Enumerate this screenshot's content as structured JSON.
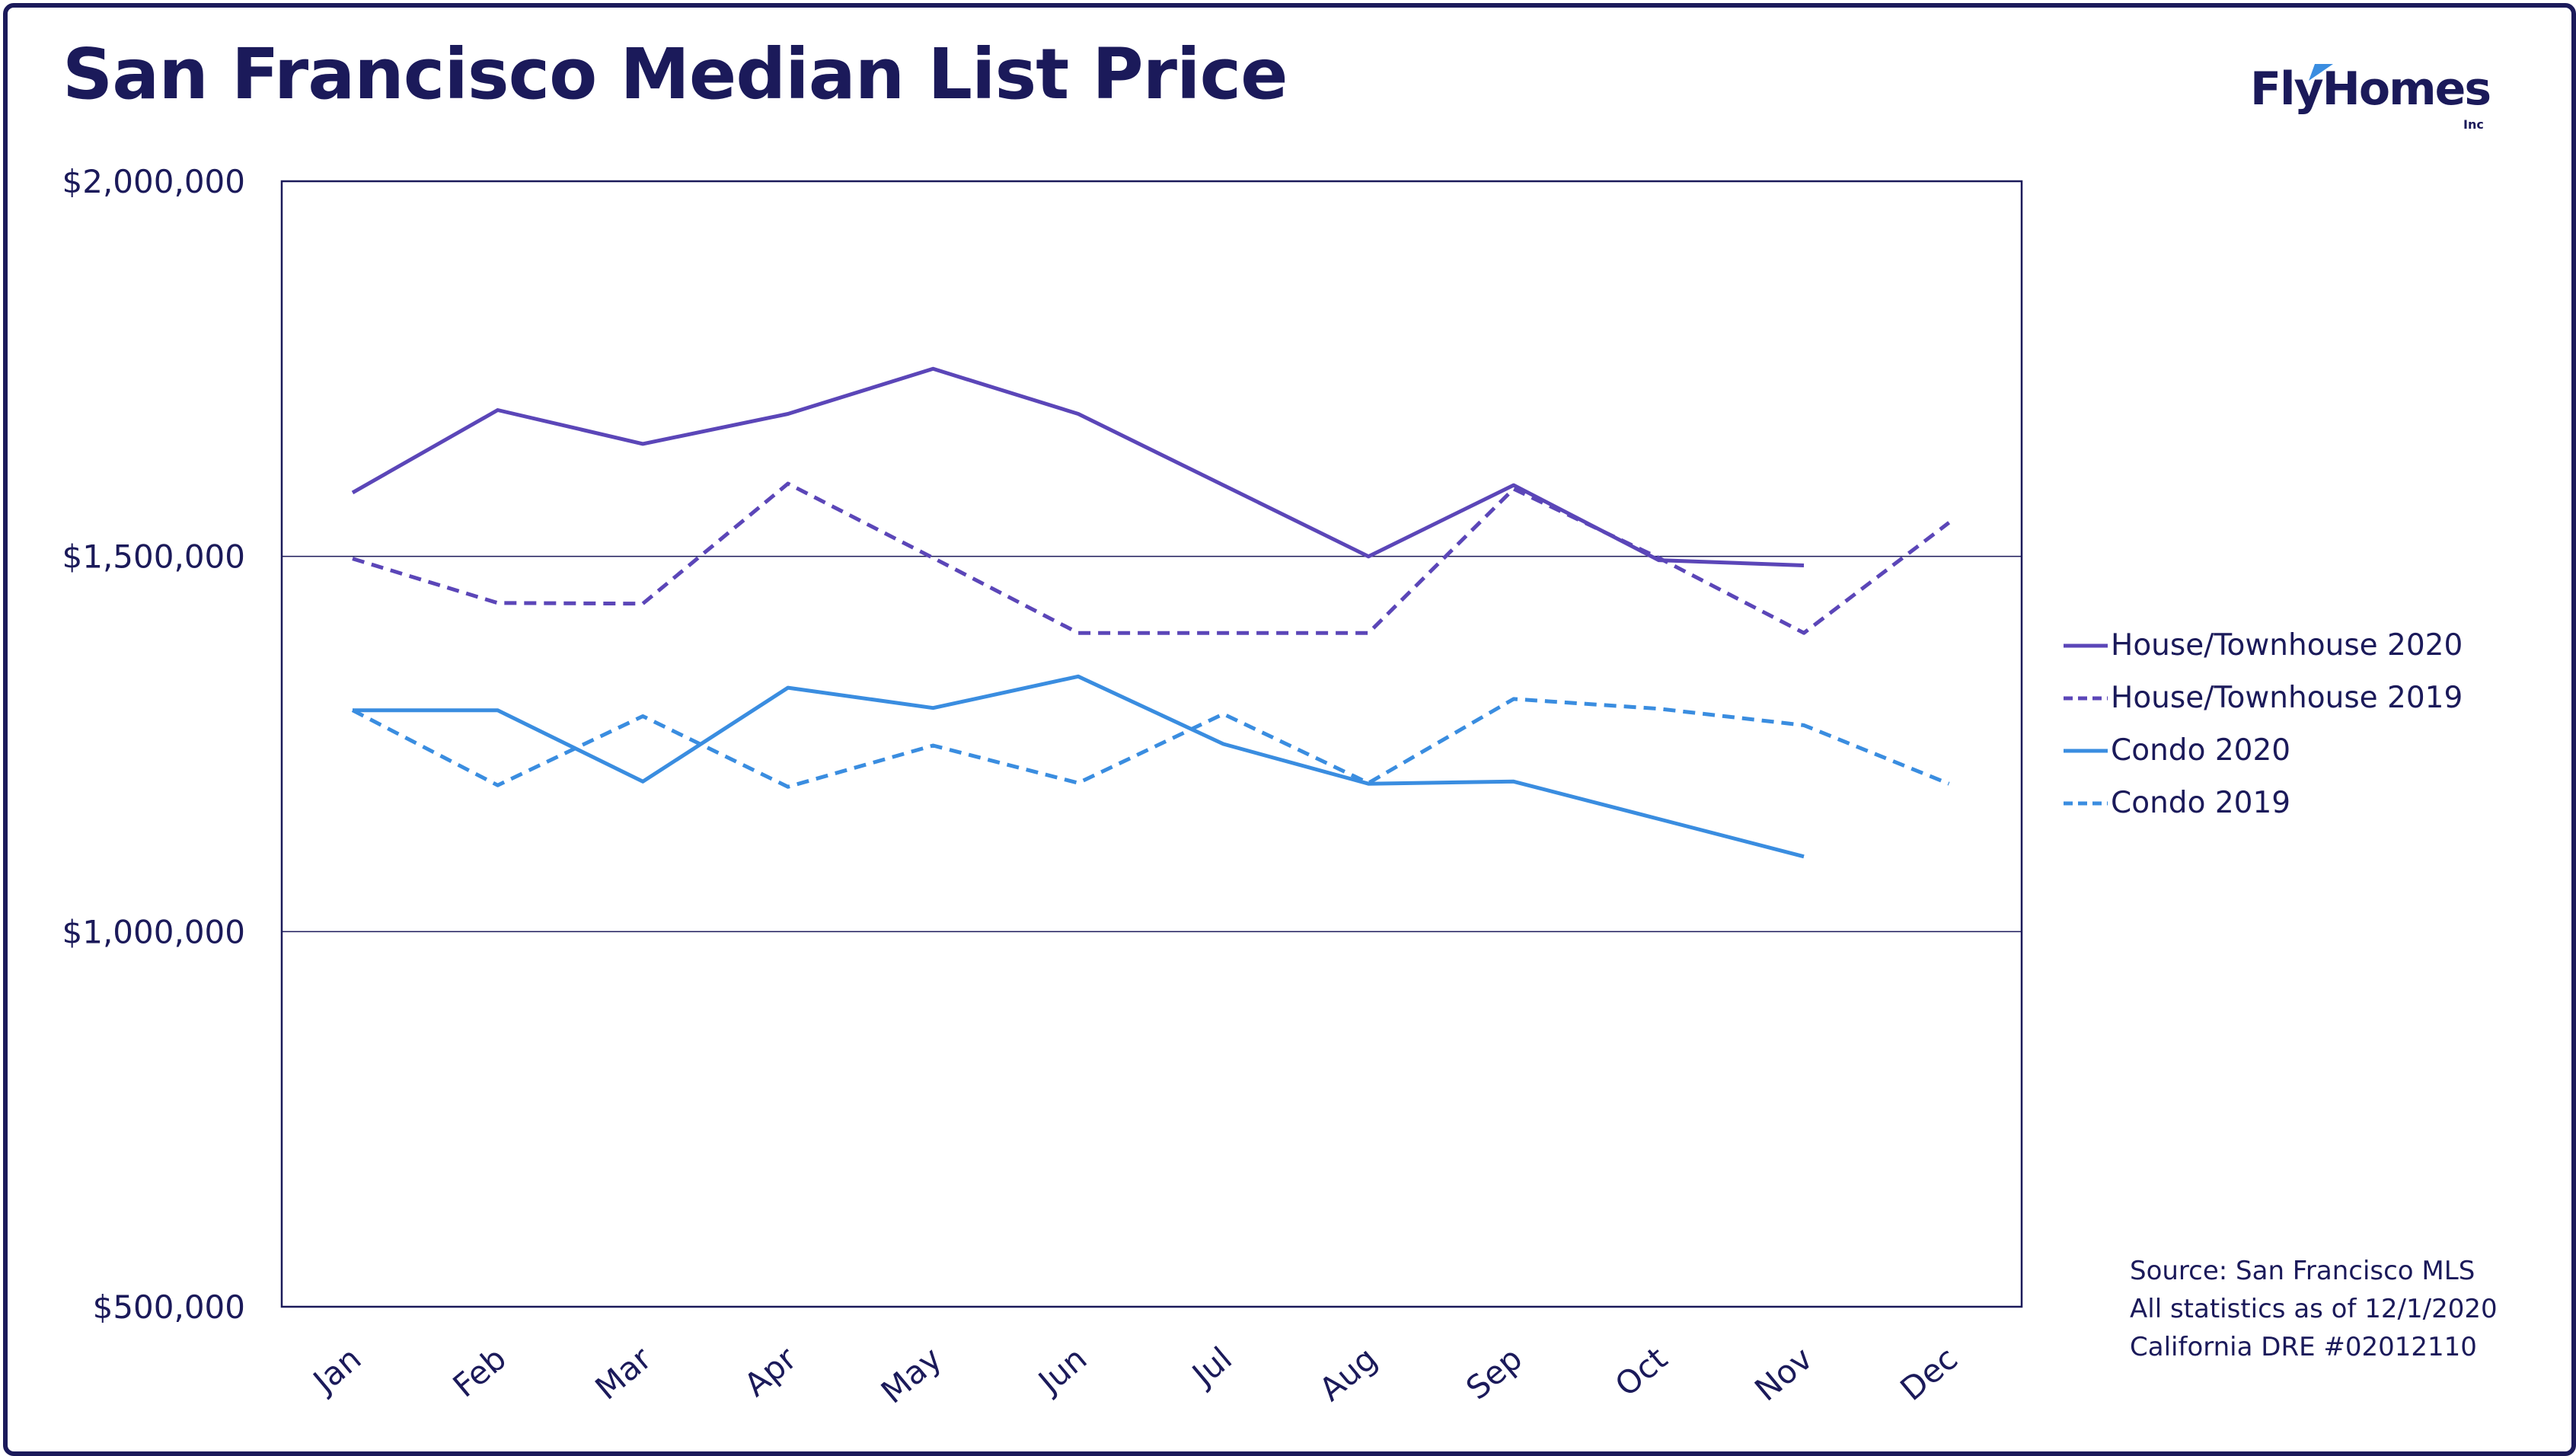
{
  "title": "San Francisco Median List Price",
  "logo": {
    "text": "FlyHomes",
    "sub": "Inc",
    "icon": "flyhomes-wing-icon"
  },
  "colors": {
    "navy": "#1b1a5a",
    "purple": "#5b46b8",
    "blue": "#3a8de0"
  },
  "source": {
    "line1": "Source: San Francisco MLS",
    "line2": "All statistics as of 12/1/2020",
    "line3": "California DRE #02012110"
  },
  "chart_data": {
    "type": "line",
    "title": "San Francisco Median List Price",
    "xlabel": "",
    "ylabel": "",
    "categories": [
      "Jan",
      "Feb",
      "Mar",
      "Apr",
      "May",
      "Jun",
      "Jul",
      "Aug",
      "Sep",
      "Oct",
      "Nov",
      "Dec"
    ],
    "ylim": [
      500000,
      2000000
    ],
    "yticks": [
      500000,
      1000000,
      1500000,
      2000000
    ],
    "ytick_labels": [
      "$500,000",
      "$1,000,000",
      "$1,500,000",
      "$2,000,000"
    ],
    "grid": "horizontal",
    "legend_position": "right",
    "series": [
      {
        "name": "House/Townhouse 2020",
        "color": "#5b46b8",
        "dash": false,
        "values": [
          1585000,
          1695000,
          1650000,
          1690000,
          1750000,
          1690000,
          1595000,
          1500000,
          1595000,
          1495000,
          1488000,
          null
        ]
      },
      {
        "name": "House/Townhouse 2019",
        "color": "#5b46b8",
        "dash": true,
        "values": [
          1497000,
          1438000,
          1437000,
          1597000,
          1498000,
          1398000,
          1398000,
          1398000,
          1590000,
          1498000,
          1398000,
          1545000
        ]
      },
      {
        "name": "Condo 2020",
        "color": "#3a8de0",
        "dash": false,
        "values": [
          1295000,
          1295000,
          1200000,
          1325000,
          1298000,
          1340000,
          1250000,
          1197000,
          1200000,
          1150000,
          1100000,
          null
        ]
      },
      {
        "name": "Condo 2019",
        "color": "#3a8de0",
        "dash": true,
        "values": [
          1295000,
          1195000,
          1287000,
          1193000,
          1248000,
          1198000,
          1290000,
          1198000,
          1310000,
          1297000,
          1275000,
          1197000
        ]
      }
    ]
  }
}
